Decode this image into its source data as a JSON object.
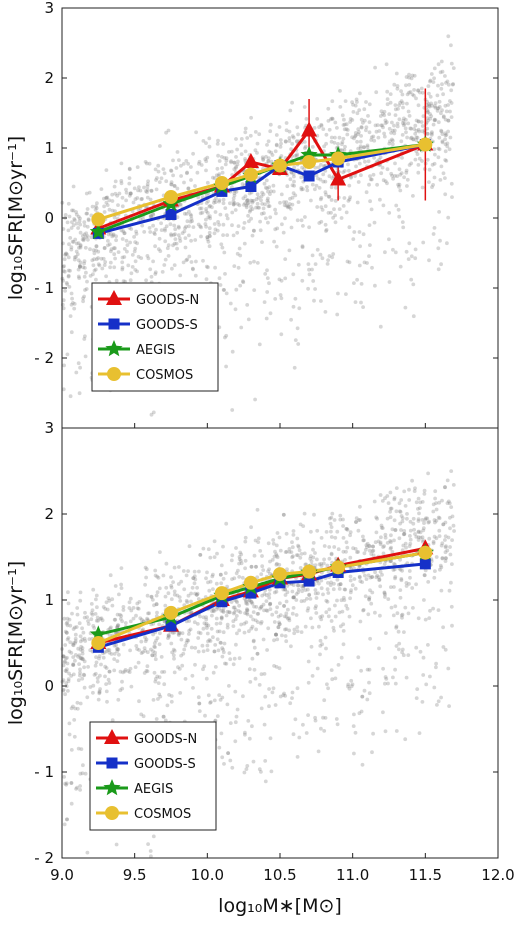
{
  "chart_data": [
    {
      "type": "line",
      "panel": "top",
      "ylabel": "log₁₀SFR[M⊙yr⁻¹]",
      "xlim": [
        9.0,
        12.0
      ],
      "ylim": [
        -3,
        3
      ],
      "yticks": [
        3,
        2,
        1,
        0,
        -1,
        -2
      ],
      "ytick_labels": [
        "3",
        "2",
        "1",
        "0",
        "- 1",
        "- 2"
      ],
      "grid": false,
      "legend": "lower-left",
      "series": [
        {
          "name": "GOODS-N",
          "color": "#e01010",
          "marker": "triangle",
          "x": [
            9.25,
            9.75,
            10.1,
            10.3,
            10.5,
            10.7,
            10.9,
            11.5
          ],
          "y": [
            -0.15,
            0.25,
            0.45,
            0.8,
            0.7,
            1.25,
            0.55,
            1.05
          ]
        },
        {
          "name": "GOODS-S",
          "color": "#1530c8",
          "marker": "square",
          "x": [
            9.25,
            9.75,
            10.1,
            10.3,
            10.5,
            10.7,
            10.9,
            11.5
          ],
          "y": [
            -0.22,
            0.05,
            0.38,
            0.45,
            0.75,
            0.6,
            0.8,
            1.05
          ]
        },
        {
          "name": "AEGIS",
          "color": "#1a9a1a",
          "marker": "star",
          "x": [
            9.25,
            9.75,
            10.1,
            10.3,
            10.5,
            10.7,
            10.9,
            11.5
          ],
          "y": [
            -0.2,
            0.2,
            0.45,
            0.6,
            0.75,
            0.9,
            0.9,
            1.05
          ]
        },
        {
          "name": "COSMOS",
          "color": "#e8c030",
          "marker": "circle",
          "x": [
            9.25,
            9.75,
            10.1,
            10.3,
            10.5,
            10.7,
            10.9,
            11.5
          ],
          "y": [
            -0.02,
            0.3,
            0.5,
            0.62,
            0.75,
            0.8,
            0.85,
            1.05
          ]
        }
      ],
      "error_bars": [
        {
          "series": "GOODS-N",
          "x": 10.7,
          "y": 1.25,
          "low": 0.85,
          "high": 1.7
        },
        {
          "series": "GOODS-N",
          "x": 10.9,
          "y": 0.55,
          "low": 0.25,
          "high": 0.85
        },
        {
          "series": "GOODS-N",
          "x": 11.5,
          "y": 1.05,
          "low": 0.25,
          "high": 1.85
        }
      ]
    },
    {
      "type": "line",
      "panel": "bottom",
      "xlabel": "log₁₀M∗[M⊙]",
      "ylabel": "log₁₀SFR[M⊙yr⁻¹]",
      "xlim": [
        9.0,
        12.0
      ],
      "ylim": [
        -2,
        3
      ],
      "xticks": [
        9.0,
        9.5,
        10.0,
        10.5,
        11.0,
        11.5,
        12.0
      ],
      "xtick_labels": [
        "9.0",
        "9.5",
        "10.0",
        "10.5",
        "11.0",
        "11.5",
        "12.0"
      ],
      "yticks": [
        3,
        2,
        1,
        0,
        -1,
        -2
      ],
      "ytick_labels": [
        "3",
        "2",
        "1",
        "0",
        "- 1",
        "- 2"
      ],
      "grid": false,
      "legend": "lower-left",
      "series": [
        {
          "name": "GOODS-N",
          "color": "#e01010",
          "marker": "triangle",
          "x": [
            9.25,
            9.75,
            10.1,
            10.3,
            10.5,
            10.7,
            10.9,
            11.5
          ],
          "y": [
            0.5,
            0.7,
            1.0,
            1.1,
            1.25,
            1.3,
            1.4,
            1.6
          ]
        },
        {
          "name": "GOODS-S",
          "color": "#1530c8",
          "marker": "square",
          "x": [
            9.25,
            9.75,
            10.1,
            10.3,
            10.5,
            10.7,
            10.9,
            11.5
          ],
          "y": [
            0.45,
            0.7,
            0.98,
            1.08,
            1.2,
            1.22,
            1.32,
            1.42
          ]
        },
        {
          "name": "AEGIS",
          "color": "#1a9a1a",
          "marker": "star",
          "x": [
            9.25,
            9.75,
            10.1,
            10.3,
            10.5,
            10.7,
            10.9,
            11.5
          ],
          "y": [
            0.6,
            0.8,
            1.05,
            1.15,
            1.25,
            1.32,
            1.38,
            1.55
          ]
        },
        {
          "name": "COSMOS",
          "color": "#e8c030",
          "marker": "circle",
          "x": [
            9.25,
            9.75,
            10.1,
            10.3,
            10.5,
            10.7,
            10.9,
            11.5
          ],
          "y": [
            0.5,
            0.85,
            1.08,
            1.2,
            1.3,
            1.33,
            1.38,
            1.55
          ]
        }
      ]
    }
  ]
}
